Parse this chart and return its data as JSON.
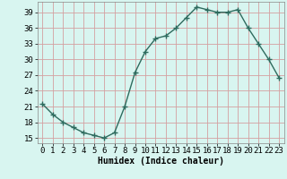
{
  "x": [
    0,
    1,
    2,
    3,
    4,
    5,
    6,
    7,
    8,
    9,
    10,
    11,
    12,
    13,
    14,
    15,
    16,
    17,
    18,
    19,
    20,
    21,
    22,
    23
  ],
  "y": [
    21.5,
    19.5,
    18,
    17,
    16,
    15.5,
    15,
    16,
    21,
    27.5,
    31.5,
    34,
    34.5,
    36,
    38,
    40,
    39.5,
    39,
    39,
    39.5,
    36,
    33,
    30,
    26.5
  ],
  "line_color": "#2e6b5e",
  "marker": "+",
  "marker_size": 4,
  "bg_color": "#d8f5f0",
  "grid_color": "#c0e0da",
  "xlabel": "Humidex (Indice chaleur)",
  "xlim": [
    -0.5,
    23.5
  ],
  "ylim": [
    14,
    41
  ],
  "yticks": [
    15,
    18,
    21,
    24,
    27,
    30,
    33,
    36,
    39
  ],
  "xticks": [
    0,
    1,
    2,
    3,
    4,
    5,
    6,
    7,
    8,
    9,
    10,
    11,
    12,
    13,
    14,
    15,
    16,
    17,
    18,
    19,
    20,
    21,
    22,
    23
  ],
  "xlabel_fontsize": 7,
  "tick_fontsize": 6.5,
  "line_width": 1.0
}
